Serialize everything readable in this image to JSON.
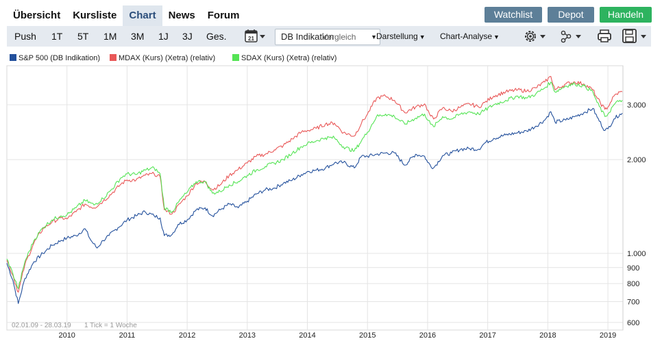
{
  "nav": {
    "tabs": [
      {
        "label": "Übersicht"
      },
      {
        "label": "Kursliste"
      },
      {
        "label": "Chart"
      },
      {
        "label": "News"
      },
      {
        "label": "Forum"
      }
    ],
    "active_tab": "Chart"
  },
  "header_buttons": {
    "watchlist": "Watchlist",
    "depot": "Depot",
    "handeln": "Handeln"
  },
  "toolbar": {
    "push": "Push",
    "r1t": "1T",
    "r5t": "5T",
    "r1m": "1M",
    "r3m": "3M",
    "r1j": "1J",
    "r3j": "3J",
    "ges": "Ges.",
    "calendar_day": "21",
    "exchange_select": "DB Indikation",
    "select_overlap": "Vergleich",
    "darstellung": "Darstellung",
    "chart_analyse": "Chart-Analyse"
  },
  "icons": {
    "calendar": "calendar-icon",
    "settings": "gear-icon",
    "network": "share-network-icon",
    "print": "printer-icon",
    "save": "save-icon"
  },
  "legend": [
    {
      "label": "S&P 500 (DB Indikation)",
      "color": "#23509c"
    },
    {
      "label": "MDAX (Kurs) (Xetra) (relativ)",
      "color": "#e95858"
    },
    {
      "label": "SDAX (Kurs) (Xetra) (relativ)",
      "color": "#55e455"
    }
  ],
  "footer": {
    "date_range": "02.01.09 - 28.03.19",
    "tick_info": "1 Tick = 1 Woche"
  },
  "chart_data": {
    "type": "line",
    "y_scale": "log",
    "ylim": [
      600,
      3700
    ],
    "xlim": [
      2009.0,
      2019.25
    ],
    "grid": true,
    "y_ticks": [
      {
        "value": 3000,
        "label": "3.000"
      },
      {
        "value": 2000,
        "label": "2.000"
      },
      {
        "value": 1000,
        "label": "1.000"
      },
      {
        "value": 900,
        "label": "900"
      },
      {
        "value": 800,
        "label": "800"
      },
      {
        "value": 700,
        "label": "700"
      },
      {
        "value": 600,
        "label": "600"
      }
    ],
    "x_ticks": [
      {
        "value": 2010,
        "label": "2010"
      },
      {
        "value": 2011,
        "label": "2011"
      },
      {
        "value": 2012,
        "label": "2012"
      },
      {
        "value": 2013,
        "label": "2013"
      },
      {
        "value": 2014,
        "label": "2014"
      },
      {
        "value": 2015,
        "label": "2015"
      },
      {
        "value": 2016,
        "label": "2016"
      },
      {
        "value": 2017,
        "label": "2017"
      },
      {
        "value": 2018,
        "label": "2018"
      },
      {
        "value": 2019,
        "label": "2019"
      }
    ],
    "series": [
      {
        "name": "S&P 500 (DB Indikation)",
        "color": "#23509c",
        "points": [
          [
            2009.0,
            930
          ],
          [
            2009.1,
            820
          ],
          [
            2009.19,
            690
          ],
          [
            2009.3,
            830
          ],
          [
            2009.45,
            940
          ],
          [
            2009.6,
            1000
          ],
          [
            2009.75,
            1060
          ],
          [
            2009.9,
            1100
          ],
          [
            2010.0,
            1120
          ],
          [
            2010.15,
            1140
          ],
          [
            2010.3,
            1200
          ],
          [
            2010.4,
            1100
          ],
          [
            2010.5,
            1040
          ],
          [
            2010.6,
            1100
          ],
          [
            2010.7,
            1140
          ],
          [
            2010.85,
            1210
          ],
          [
            2011.0,
            1280
          ],
          [
            2011.15,
            1320
          ],
          [
            2011.3,
            1360
          ],
          [
            2011.45,
            1320
          ],
          [
            2011.55,
            1300
          ],
          [
            2011.62,
            1140
          ],
          [
            2011.75,
            1150
          ],
          [
            2011.85,
            1240
          ],
          [
            2012.0,
            1280
          ],
          [
            2012.15,
            1380
          ],
          [
            2012.3,
            1400
          ],
          [
            2012.42,
            1320
          ],
          [
            2012.55,
            1380
          ],
          [
            2012.7,
            1440
          ],
          [
            2012.85,
            1400
          ],
          [
            2013.0,
            1470
          ],
          [
            2013.15,
            1550
          ],
          [
            2013.3,
            1600
          ],
          [
            2013.45,
            1620
          ],
          [
            2013.6,
            1680
          ],
          [
            2013.75,
            1720
          ],
          [
            2013.9,
            1790
          ],
          [
            2014.0,
            1830
          ],
          [
            2014.15,
            1850
          ],
          [
            2014.3,
            1880
          ],
          [
            2014.45,
            1950
          ],
          [
            2014.6,
            1960
          ],
          [
            2014.78,
            1880
          ],
          [
            2014.9,
            2050
          ],
          [
            2015.0,
            2050
          ],
          [
            2015.15,
            2080
          ],
          [
            2015.3,
            2100
          ],
          [
            2015.45,
            2100
          ],
          [
            2015.62,
            1920
          ],
          [
            2015.8,
            2080
          ],
          [
            2015.95,
            2050
          ],
          [
            2016.0,
            1960
          ],
          [
            2016.1,
            1880
          ],
          [
            2016.25,
            2060
          ],
          [
            2016.4,
            2100
          ],
          [
            2016.55,
            2160
          ],
          [
            2016.7,
            2170
          ],
          [
            2016.85,
            2160
          ],
          [
            2016.95,
            2260
          ],
          [
            2017.1,
            2340
          ],
          [
            2017.3,
            2400
          ],
          [
            2017.5,
            2440
          ],
          [
            2017.65,
            2470
          ],
          [
            2017.8,
            2560
          ],
          [
            2017.95,
            2680
          ],
          [
            2018.05,
            2850
          ],
          [
            2018.12,
            2640
          ],
          [
            2018.3,
            2680
          ],
          [
            2018.45,
            2750
          ],
          [
            2018.6,
            2830
          ],
          [
            2018.75,
            2920
          ],
          [
            2018.82,
            2740
          ],
          [
            2018.95,
            2480
          ],
          [
            2019.0,
            2510
          ],
          [
            2019.1,
            2700
          ],
          [
            2019.2,
            2800
          ],
          [
            2019.24,
            2820
          ]
        ]
      },
      {
        "name": "MDAX (Kurs) (Xetra) (relativ)",
        "color": "#e95858",
        "points": [
          [
            2009.0,
            950
          ],
          [
            2009.1,
            850
          ],
          [
            2009.19,
            750
          ],
          [
            2009.3,
            920
          ],
          [
            2009.45,
            1080
          ],
          [
            2009.6,
            1200
          ],
          [
            2009.75,
            1260
          ],
          [
            2009.9,
            1300
          ],
          [
            2010.0,
            1290
          ],
          [
            2010.15,
            1360
          ],
          [
            2010.3,
            1440
          ],
          [
            2010.45,
            1400
          ],
          [
            2010.6,
            1470
          ],
          [
            2010.75,
            1560
          ],
          [
            2010.9,
            1670
          ],
          [
            2011.0,
            1720
          ],
          [
            2011.15,
            1720
          ],
          [
            2011.3,
            1780
          ],
          [
            2011.45,
            1800
          ],
          [
            2011.55,
            1760
          ],
          [
            2011.62,
            1380
          ],
          [
            2011.75,
            1340
          ],
          [
            2011.9,
            1460
          ],
          [
            2012.0,
            1530
          ],
          [
            2012.15,
            1680
          ],
          [
            2012.3,
            1700
          ],
          [
            2012.42,
            1600
          ],
          [
            2012.55,
            1660
          ],
          [
            2012.7,
            1780
          ],
          [
            2012.85,
            1860
          ],
          [
            2013.0,
            1950
          ],
          [
            2013.15,
            2050
          ],
          [
            2013.3,
            2080
          ],
          [
            2013.45,
            2150
          ],
          [
            2013.6,
            2220
          ],
          [
            2013.75,
            2330
          ],
          [
            2013.9,
            2450
          ],
          [
            2014.0,
            2480
          ],
          [
            2014.15,
            2520
          ],
          [
            2014.3,
            2600
          ],
          [
            2014.45,
            2620
          ],
          [
            2014.6,
            2440
          ],
          [
            2014.78,
            2380
          ],
          [
            2014.9,
            2620
          ],
          [
            2015.0,
            2800
          ],
          [
            2015.15,
            3150
          ],
          [
            2015.3,
            3200
          ],
          [
            2015.45,
            3100
          ],
          [
            2015.62,
            2830
          ],
          [
            2015.8,
            2950
          ],
          [
            2015.95,
            3020
          ],
          [
            2016.05,
            2760
          ],
          [
            2016.1,
            2700
          ],
          [
            2016.25,
            2930
          ],
          [
            2016.4,
            2860
          ],
          [
            2016.55,
            2950
          ],
          [
            2016.7,
            3020
          ],
          [
            2016.85,
            2950
          ],
          [
            2016.95,
            3050
          ],
          [
            2017.1,
            3200
          ],
          [
            2017.3,
            3300
          ],
          [
            2017.5,
            3350
          ],
          [
            2017.65,
            3320
          ],
          [
            2017.8,
            3400
          ],
          [
            2017.95,
            3550
          ],
          [
            2018.05,
            3700
          ],
          [
            2018.12,
            3350
          ],
          [
            2018.3,
            3500
          ],
          [
            2018.45,
            3550
          ],
          [
            2018.6,
            3500
          ],
          [
            2018.75,
            3350
          ],
          [
            2018.82,
            3150
          ],
          [
            2018.95,
            2900
          ],
          [
            2019.0,
            2950
          ],
          [
            2019.1,
            3200
          ],
          [
            2019.2,
            3300
          ],
          [
            2019.24,
            3300
          ]
        ]
      },
      {
        "name": "SDAX (Kurs) (Xetra) (relativ)",
        "color": "#55e455",
        "points": [
          [
            2009.0,
            960
          ],
          [
            2009.1,
            860
          ],
          [
            2009.19,
            770
          ],
          [
            2009.3,
            940
          ],
          [
            2009.45,
            1100
          ],
          [
            2009.6,
            1210
          ],
          [
            2009.75,
            1280
          ],
          [
            2009.9,
            1320
          ],
          [
            2010.0,
            1330
          ],
          [
            2010.15,
            1400
          ],
          [
            2010.3,
            1480
          ],
          [
            2010.45,
            1430
          ],
          [
            2010.6,
            1500
          ],
          [
            2010.75,
            1610
          ],
          [
            2010.9,
            1750
          ],
          [
            2011.0,
            1800
          ],
          [
            2011.15,
            1790
          ],
          [
            2011.3,
            1850
          ],
          [
            2011.45,
            1880
          ],
          [
            2011.55,
            1800
          ],
          [
            2011.62,
            1400
          ],
          [
            2011.75,
            1360
          ],
          [
            2011.9,
            1500
          ],
          [
            2012.0,
            1570
          ],
          [
            2012.15,
            1700
          ],
          [
            2012.3,
            1700
          ],
          [
            2012.42,
            1560
          ],
          [
            2012.55,
            1580
          ],
          [
            2012.7,
            1660
          ],
          [
            2012.85,
            1700
          ],
          [
            2013.0,
            1780
          ],
          [
            2013.15,
            1850
          ],
          [
            2013.3,
            1900
          ],
          [
            2013.45,
            1950
          ],
          [
            2013.6,
            2000
          ],
          [
            2013.75,
            2100
          ],
          [
            2013.9,
            2200
          ],
          [
            2014.0,
            2250
          ],
          [
            2014.15,
            2300
          ],
          [
            2014.3,
            2350
          ],
          [
            2014.45,
            2350
          ],
          [
            2014.6,
            2200
          ],
          [
            2014.78,
            2130
          ],
          [
            2014.9,
            2300
          ],
          [
            2015.0,
            2450
          ],
          [
            2015.15,
            2750
          ],
          [
            2015.3,
            2800
          ],
          [
            2015.45,
            2750
          ],
          [
            2015.62,
            2600
          ],
          [
            2015.8,
            2720
          ],
          [
            2015.95,
            2800
          ],
          [
            2016.05,
            2600
          ],
          [
            2016.1,
            2550
          ],
          [
            2016.25,
            2750
          ],
          [
            2016.4,
            2700
          ],
          [
            2016.55,
            2800
          ],
          [
            2016.7,
            2850
          ],
          [
            2016.85,
            2800
          ],
          [
            2016.95,
            2880
          ],
          [
            2017.1,
            3000
          ],
          [
            2017.3,
            3100
          ],
          [
            2017.5,
            3200
          ],
          [
            2017.65,
            3150
          ],
          [
            2017.8,
            3250
          ],
          [
            2017.95,
            3400
          ],
          [
            2018.05,
            3550
          ],
          [
            2018.12,
            3300
          ],
          [
            2018.3,
            3450
          ],
          [
            2018.45,
            3500
          ],
          [
            2018.6,
            3450
          ],
          [
            2018.75,
            3300
          ],
          [
            2018.82,
            3050
          ],
          [
            2018.95,
            2750
          ],
          [
            2019.0,
            2800
          ],
          [
            2019.1,
            3000
          ],
          [
            2019.2,
            3100
          ],
          [
            2019.24,
            3100
          ]
        ]
      }
    ]
  }
}
